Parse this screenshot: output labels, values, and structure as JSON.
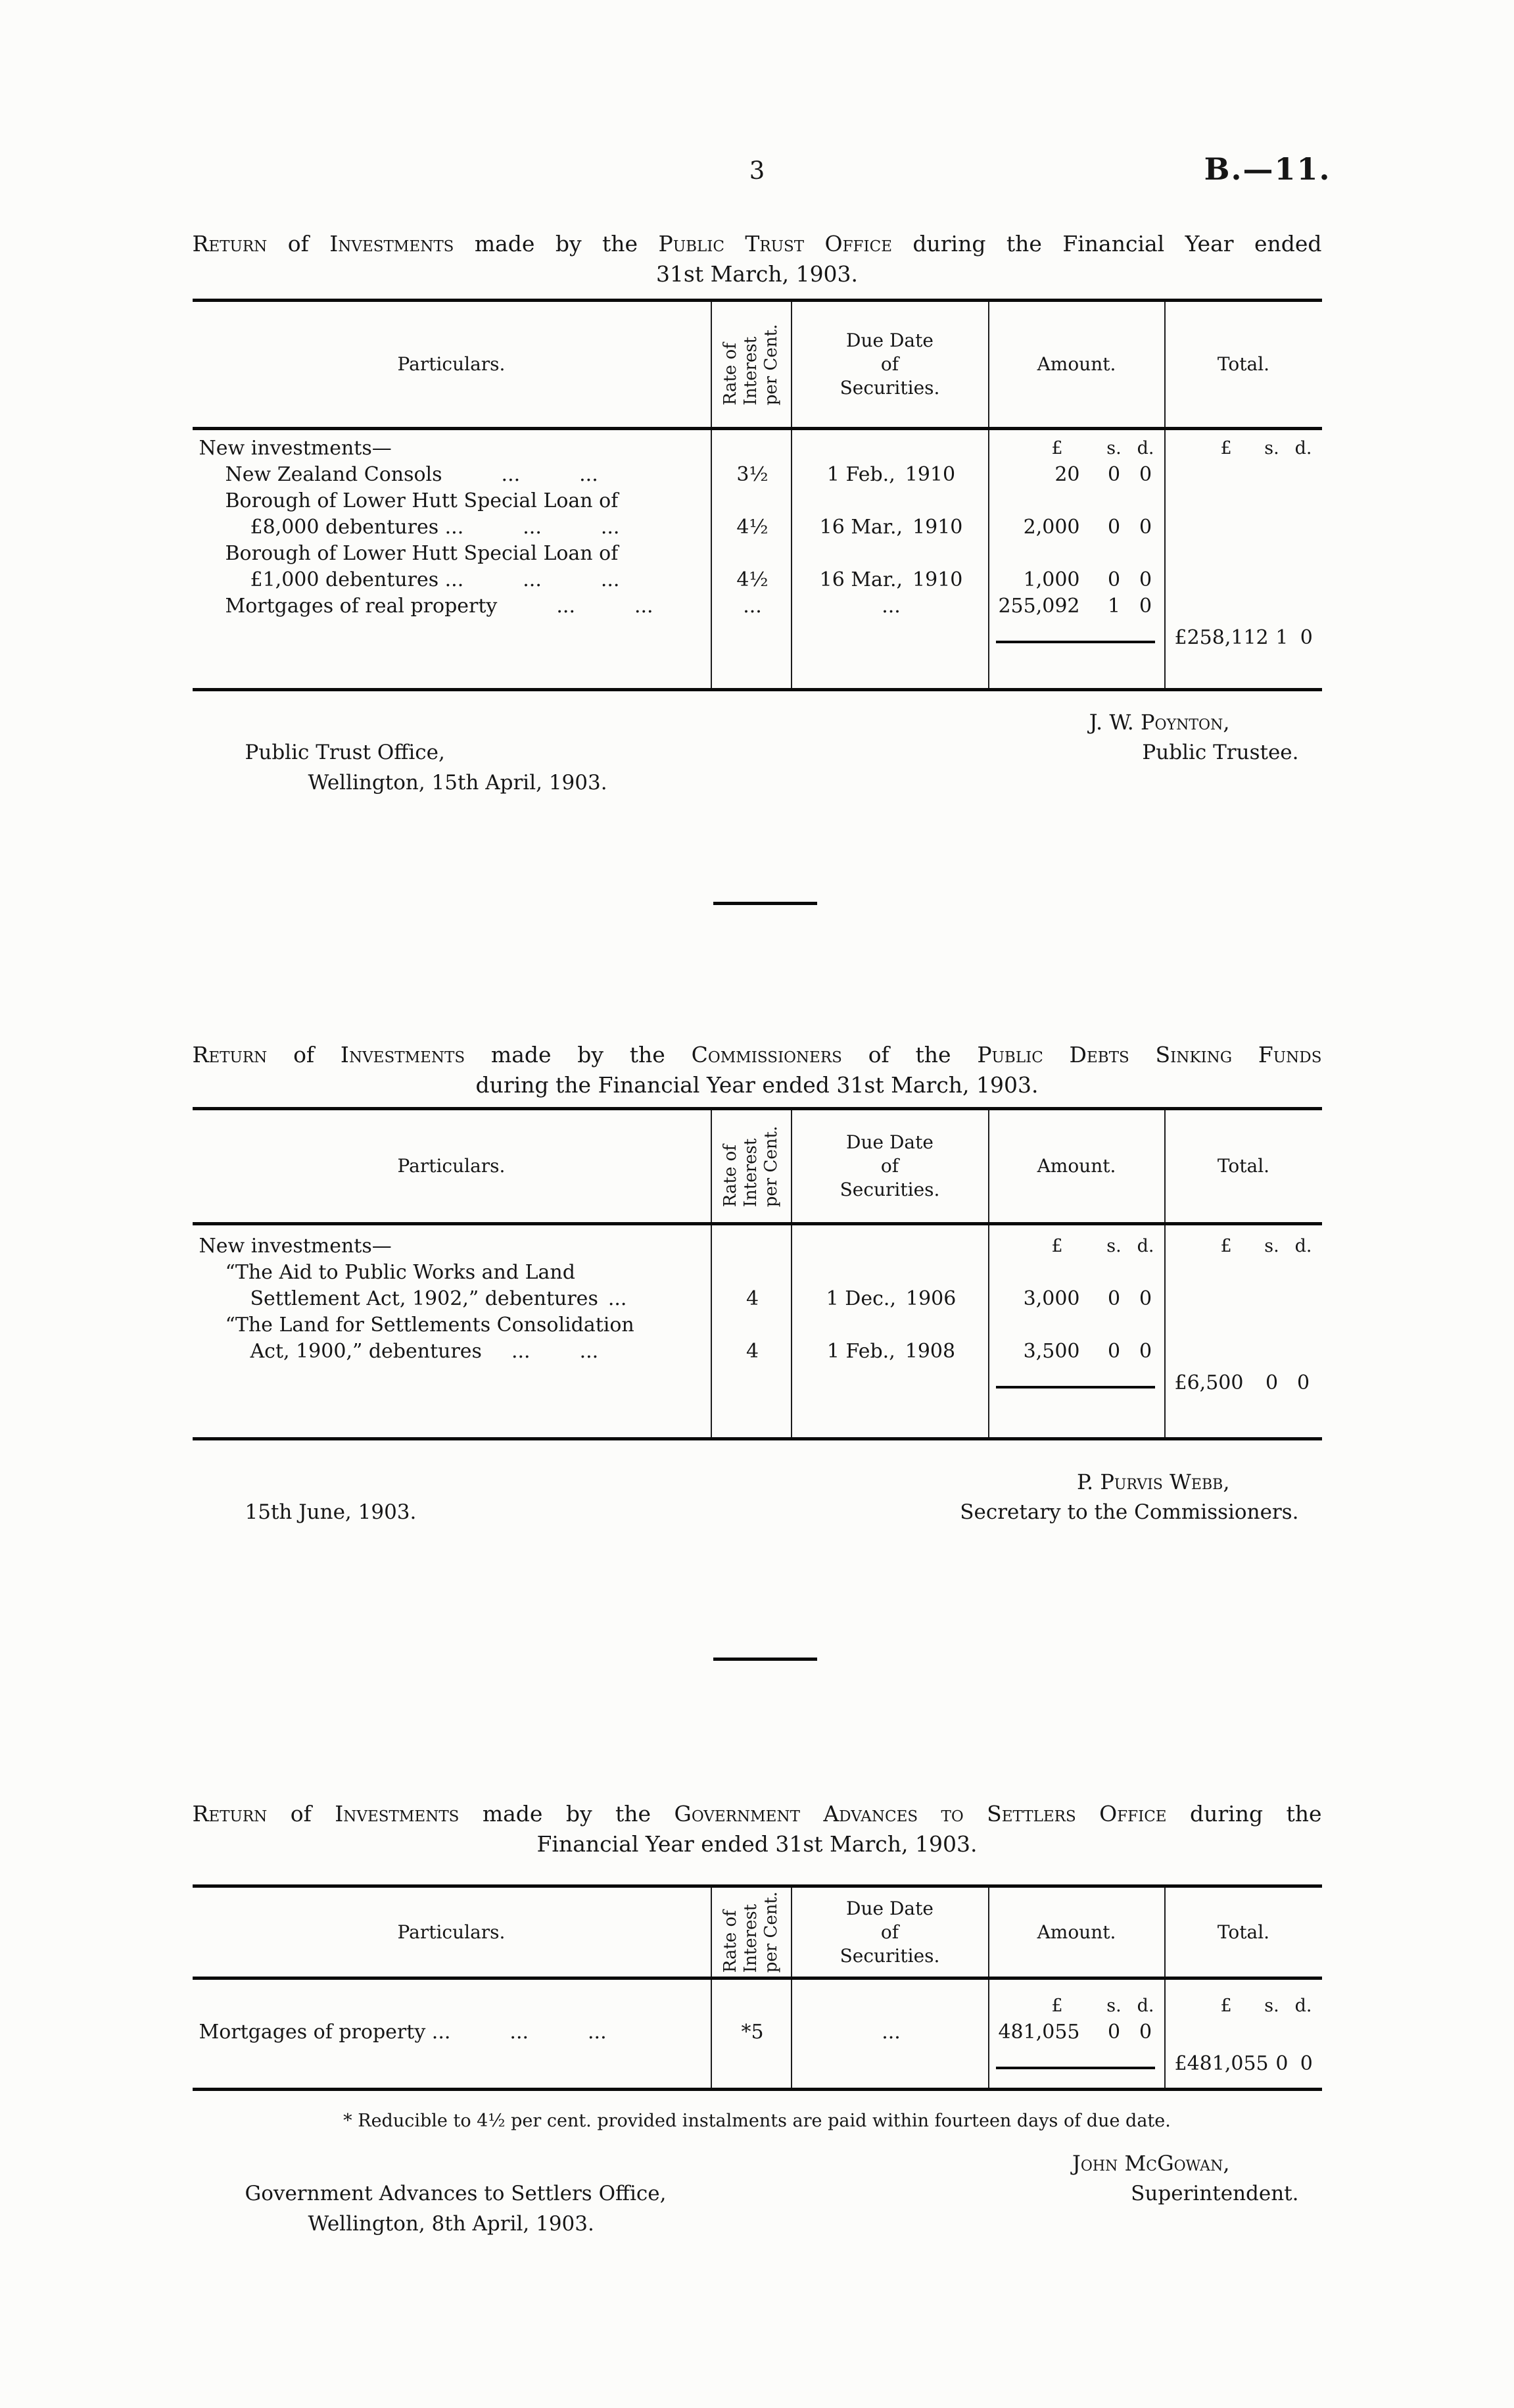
{
  "page": {
    "number": "3",
    "ref": "B.—11."
  },
  "columns": {
    "particulars": "Particulars.",
    "rate": [
      "Rate of",
      "Interest",
      "per Cent."
    ],
    "due": [
      "Due Date",
      "of",
      "Securities."
    ],
    "amount": "Amount.",
    "total": "Total."
  },
  "money_heads": {
    "pound": "£",
    "s": "s.",
    "d": "d."
  },
  "sections": [
    {
      "title": {
        "l1": [
          {
            "t": "Return",
            "sc": true
          },
          {
            "t": " of ",
            "sc": false
          },
          {
            "t": "Investments",
            "sc": true
          },
          {
            "t": " made by the ",
            "sc": false
          },
          {
            "t": "Public Trust Office",
            "sc": true
          },
          {
            "t": " during the Financial Year ended",
            "sc": false
          }
        ],
        "l2": "31st March, 1903."
      },
      "group_label": "New investments—",
      "rows": [
        {
          "p1": "New Zealand Consols   ...   ...",
          "rate": "3½",
          "due": "1 Feb., 1910",
          "pound": "20",
          "s": "0",
          "d": "0"
        },
        {
          "p1": "Borough of Lower Hutt Special Loan of",
          "p2": "£8,000 debentures ...   ...   ...",
          "rate": "4½",
          "due": "16 Mar., 1910",
          "pound": "2,000",
          "s": "0",
          "d": "0"
        },
        {
          "p1": "Borough of Lower Hutt Special Loan of",
          "p2": "£1,000 debentures ...   ...   ...",
          "rate": "4½",
          "due": "16 Mar., 1910",
          "pound": "1,000",
          "s": "0",
          "d": "0"
        },
        {
          "p1": "Mortgages of real property   ...   ...",
          "rate": "...",
          "due": "...",
          "pound": "255,092",
          "s": "1",
          "d": "0"
        }
      ],
      "total": {
        "pound": "£258,112",
        "s": "1",
        "d": "0"
      },
      "signature": {
        "name": "J. W. Poynton,",
        "role": "Public Trustee.",
        "addr1": "Public Trust Office,",
        "addr2": "Wellington, 15th April, 1903."
      }
    },
    {
      "title": {
        "l1": [
          {
            "t": "Return",
            "sc": true
          },
          {
            "t": " of ",
            "sc": false
          },
          {
            "t": "Investments",
            "sc": true
          },
          {
            "t": " made by the ",
            "sc": false
          },
          {
            "t": "Commissioners",
            "sc": true
          },
          {
            "t": " of the ",
            "sc": false
          },
          {
            "t": "Public Debts Sinking Funds",
            "sc": true
          }
        ],
        "l2": "during the Financial Year ended 31st March, 1903."
      },
      "group_label": "New investments—",
      "rows": [
        {
          "p1": "“The Aid to Public Works and Land",
          "p2": "Settlement Act, 1902,” debentures ...",
          "rate": "4",
          "due": "1 Dec., 1906",
          "pound": "3,000",
          "s": "0",
          "d": "0"
        },
        {
          "p1": "“The Land for Settlements Consolidation",
          "p2": "Act, 1900,” debentures  ...   ...",
          "rate": "4",
          "due": "1 Feb., 1908",
          "pound": "3,500",
          "s": "0",
          "d": "0"
        }
      ],
      "total": {
        "pound": "£6,500",
        "s": "0",
        "d": "0"
      },
      "signature": {
        "name": "P. Purvis Webb,",
        "role": "Secretary to the Commissioners.",
        "addr1": "15th June, 1903."
      }
    },
    {
      "title": {
        "l1": [
          {
            "t": "Return",
            "sc": true
          },
          {
            "t": " of ",
            "sc": false
          },
          {
            "t": "Investments",
            "sc": true
          },
          {
            "t": " made by the ",
            "sc": false
          },
          {
            "t": "Government Advances to Settlers Office",
            "sc": true
          },
          {
            "t": " during the",
            "sc": false
          }
        ],
        "l2": "Financial Year ended 31st March, 1903."
      },
      "rows": [
        {
          "p1": "Mortgages of property ...   ...   ...",
          "rate": "*5",
          "due": "...",
          "pound": "481,055",
          "s": "0",
          "d": "0"
        }
      ],
      "total": {
        "pound": "£481,055",
        "s": "0",
        "d": "0"
      },
      "footnote": "* Reducible to 4½ per cent. provided instalments are paid within fourteen days of due date.",
      "signature": {
        "name": "John McGowan,",
        "role": "Superintendent.",
        "addr1": "Government Advances to Settlers Office,",
        "addr2": "Wellington, 8th April, 1903."
      }
    }
  ]
}
